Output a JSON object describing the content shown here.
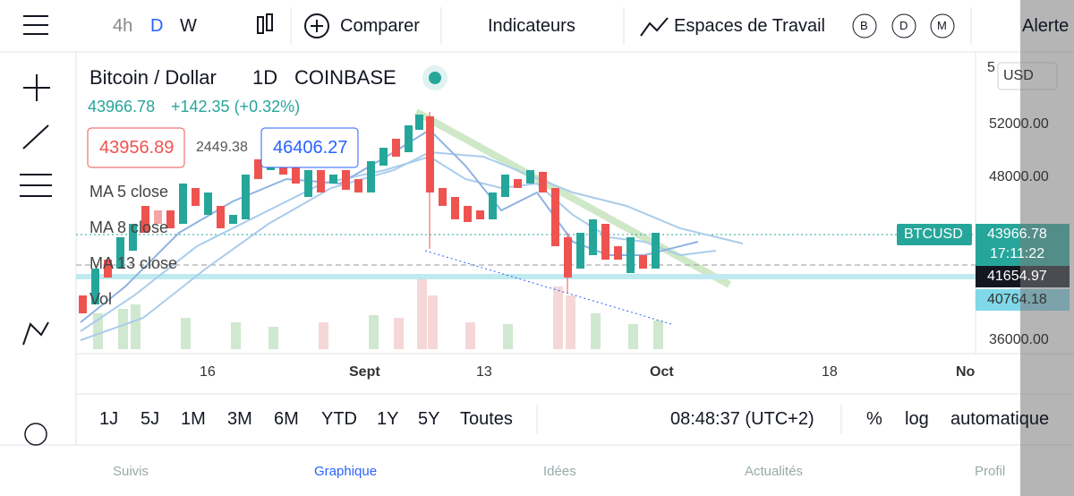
{
  "toolbar": {
    "intervals": [
      "4h",
      "D",
      "W"
    ],
    "compare": "Comparer",
    "indicators": "Indicateurs",
    "workspaces": "Espaces de Travail",
    "badges": [
      "B",
      "D",
      "M"
    ],
    "alerts": "Alerte"
  },
  "header": {
    "symbol": "Bitcoin / Dollar",
    "interval": "1D",
    "exchange": "COINBASE",
    "price": "43966.78",
    "change": "+142.35 (+0.32%)",
    "sell": "43956.89",
    "spread": "2449.38",
    "buy": "46406.27"
  },
  "indicators": [
    "MA 5 close",
    "MA 8 close",
    "MA 13 close",
    "Vol"
  ],
  "price_axis": {
    "top": "5",
    "currency": "USD",
    "ticks": [
      "52000.00",
      "48000.00",
      "36000.00"
    ],
    "symbol_badge": "BTCUSD",
    "last": "43966.78",
    "countdown": "17:11:22",
    "level1": "41654.97",
    "level2": "40764.18"
  },
  "time_axis": [
    "16",
    "Sept",
    "13",
    "Oct",
    "18",
    "No"
  ],
  "ranges": [
    "1J",
    "5J",
    "1M",
    "3M",
    "6M",
    "YTD",
    "1Y",
    "5Y",
    "Toutes"
  ],
  "status": {
    "time": "08:48:37 (UTC+2)",
    "percent": "%",
    "log": "log",
    "auto": "automatique"
  },
  "nav": [
    "Suivis",
    "Graphique",
    "Idées",
    "Actualités",
    "Profil"
  ]
}
